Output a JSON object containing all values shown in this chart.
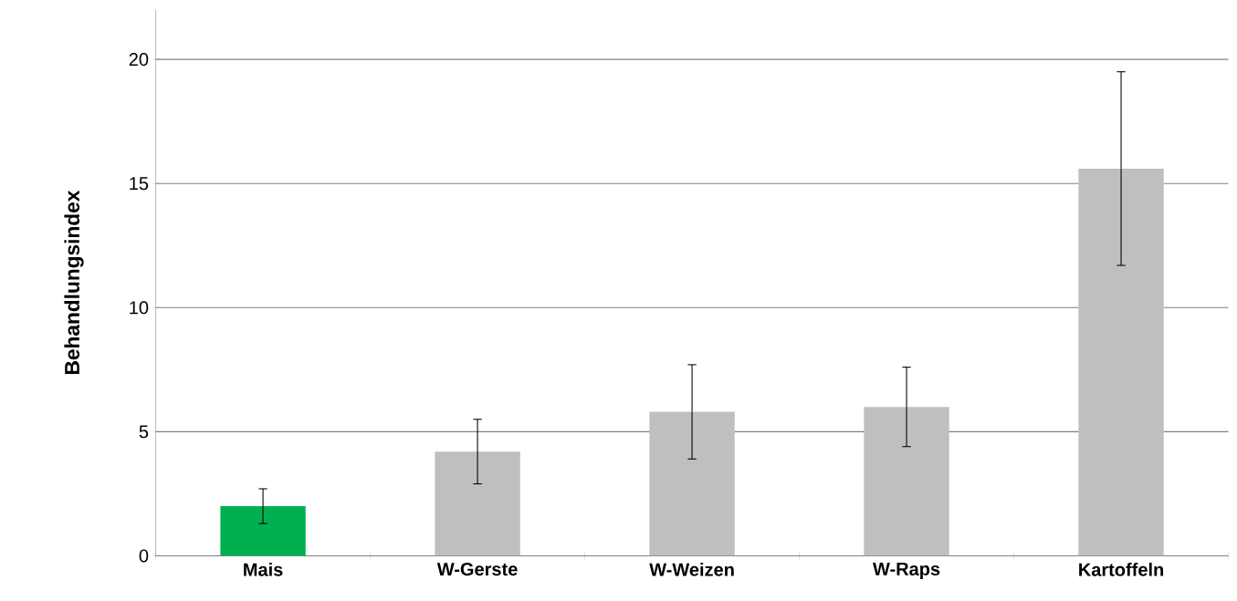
{
  "chart_data": {
    "type": "bar",
    "ylabel": "Behandlungsindex",
    "categories": [
      "Mais",
      "W-Gerste",
      "W-Weizen",
      "W-Raps",
      "Kartoffeln"
    ],
    "values": [
      2.0,
      4.2,
      5.8,
      6.0,
      15.6
    ],
    "colors": [
      "#00b050",
      "#bfbfbf",
      "#bfbfbf",
      "#bfbfbf",
      "#bfbfbf"
    ],
    "errors": [
      [
        1.3,
        2.7
      ],
      [
        2.9,
        5.5
      ],
      [
        3.9,
        7.7
      ],
      [
        4.4,
        7.6
      ],
      [
        11.7,
        19.5
      ]
    ],
    "ylim": [
      0,
      22
    ],
    "yticks": [
      0,
      5,
      10,
      15,
      20
    ],
    "grid": "y"
  }
}
